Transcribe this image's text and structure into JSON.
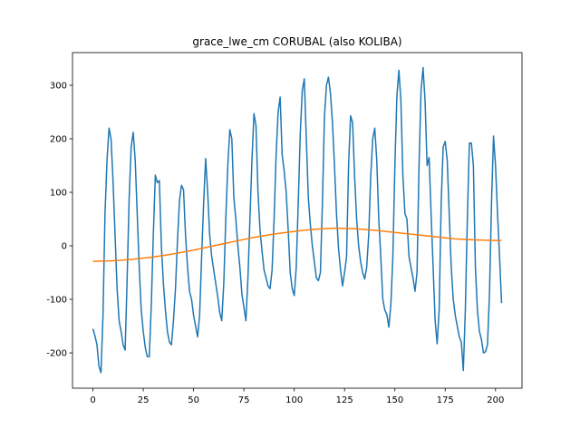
{
  "chart_data": {
    "type": "line",
    "title": "grace_lwe_cm CORUBAL (also KOLIBA)",
    "x": [
      0,
      1,
      2,
      3,
      4,
      5,
      6,
      7,
      8,
      9,
      10,
      11,
      12,
      13,
      14,
      15,
      16,
      17,
      18,
      19,
      20,
      21,
      22,
      23,
      24,
      25,
      26,
      27,
      28,
      29,
      30,
      31,
      32,
      33,
      34,
      35,
      36,
      37,
      38,
      39,
      40,
      41,
      42,
      43,
      44,
      45,
      46,
      47,
      48,
      49,
      50,
      51,
      52,
      53,
      54,
      55,
      56,
      57,
      58,
      59,
      60,
      61,
      62,
      63,
      64,
      65,
      66,
      67,
      68,
      69,
      70,
      71,
      72,
      73,
      74,
      75,
      76,
      77,
      78,
      79,
      80,
      81,
      82,
      83,
      84,
      85,
      86,
      87,
      88,
      89,
      90,
      91,
      92,
      93,
      94,
      95,
      96,
      97,
      98,
      99,
      100,
      101,
      102,
      103,
      104,
      105,
      106,
      107,
      108,
      109,
      110,
      111,
      112,
      113,
      114,
      115,
      116,
      117,
      118,
      119,
      120,
      121,
      122,
      123,
      124,
      125,
      126,
      127,
      128,
      129,
      130,
      131,
      132,
      133,
      134,
      135,
      136,
      137,
      138,
      139,
      140,
      141,
      142,
      143,
      144,
      145,
      146,
      147,
      148,
      149,
      150,
      151,
      152,
      153,
      154,
      155,
      156,
      157,
      158,
      159,
      160,
      161,
      162,
      163,
      164,
      165,
      166,
      167,
      168,
      169,
      170,
      171,
      172,
      173,
      174,
      175,
      176,
      177,
      178,
      179,
      180,
      181,
      182,
      183,
      184,
      185,
      186,
      187,
      188,
      189,
      190,
      191,
      192,
      193,
      194,
      195,
      196,
      197,
      198,
      199,
      200,
      201,
      202,
      203
    ],
    "series": [
      {
        "color": "#1f77b4",
        "values": [
          -155,
          -168,
          -185,
          -225,
          -237,
          -130,
          60,
          160,
          220,
          200,
          120,
          20,
          -80,
          -140,
          -160,
          -185,
          -195,
          -60,
          90,
          185,
          212,
          160,
          60,
          -40,
          -120,
          -160,
          -190,
          -207,
          -207,
          -110,
          20,
          132,
          118,
          122,
          0,
          -70,
          -120,
          -160,
          -180,
          -185,
          -140,
          -80,
          10,
          85,
          113,
          105,
          20,
          -40,
          -85,
          -100,
          -130,
          -150,
          -170,
          -130,
          -20,
          80,
          163,
          100,
          20,
          -20,
          -45,
          -70,
          -95,
          -125,
          -140,
          -70,
          50,
          150,
          217,
          200,
          90,
          50,
          0,
          -40,
          -90,
          -115,
          -140,
          -60,
          50,
          160,
          247,
          225,
          100,
          30,
          -10,
          -45,
          -60,
          -75,
          -80,
          -45,
          50,
          170,
          250,
          278,
          170,
          140,
          100,
          30,
          -50,
          -80,
          -93,
          -40,
          80,
          210,
          290,
          312,
          200,
          90,
          40,
          0,
          -30,
          -60,
          -65,
          -50,
          80,
          240,
          300,
          315,
          285,
          230,
          150,
          60,
          -5,
          -45,
          -75,
          -50,
          -20,
          150,
          243,
          230,
          130,
          50,
          0,
          -30,
          -50,
          -62,
          -40,
          20,
          130,
          200,
          220,
          160,
          50,
          -20,
          -100,
          -120,
          -128,
          -152,
          -110,
          -20,
          150,
          280,
          328,
          270,
          130,
          60,
          50,
          -20,
          -40,
          -60,
          -85,
          -50,
          150,
          290,
          333,
          270,
          150,
          165,
          60,
          -40,
          -140,
          -183,
          -120,
          80,
          185,
          195,
          160,
          60,
          -40,
          -100,
          -130,
          -150,
          -170,
          -180,
          -233,
          -120,
          50,
          192,
          192,
          150,
          -40,
          -120,
          -160,
          -175,
          -200,
          -198,
          -185,
          -90,
          80,
          205,
          150,
          60,
          -20,
          -107
        ]
      },
      {
        "color": "#ff7f0e",
        "x": [
          0,
          10,
          20,
          30,
          40,
          50,
          60,
          70,
          80,
          90,
          100,
          110,
          120,
          130,
          140,
          150,
          160,
          170,
          180,
          190,
          200,
          203
        ],
        "values": [
          -29,
          -28,
          -25,
          -21,
          -15,
          -8,
          0,
          8,
          16,
          22,
          27,
          31,
          33,
          32,
          29,
          25,
          21,
          17,
          13,
          11,
          10,
          10
        ]
      }
    ],
    "xlim": [
      -10.15,
      213.15
    ],
    "ylim": [
      -266,
      361
    ],
    "xticks": [
      0,
      25,
      50,
      75,
      100,
      125,
      150,
      175,
      200
    ],
    "yticks": [
      -200,
      -100,
      0,
      100,
      200,
      300
    ]
  }
}
